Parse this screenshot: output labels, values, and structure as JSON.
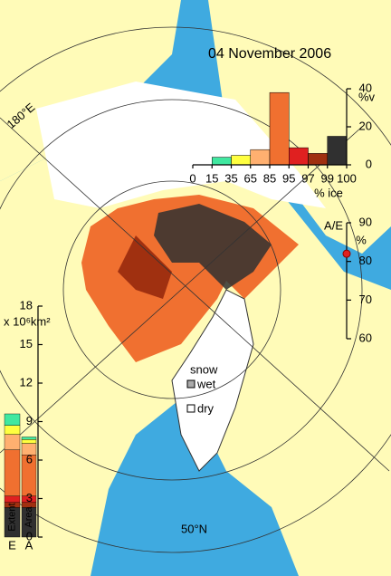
{
  "title": "04 November 2006",
  "map_labels": {
    "longitude": "180°E",
    "latitude": "50°N",
    "snow": "snow",
    "wet": "wet",
    "dry": "dry"
  },
  "histogram": {
    "type": "bar",
    "bins": [
      0,
      15,
      35,
      65,
      85,
      95,
      97,
      99,
      100
    ],
    "values": [
      0,
      4,
      5,
      8,
      38,
      9,
      6,
      15
    ],
    "colors": [
      "#2040ff",
      "#40e8a0",
      "#ffff40",
      "#ffb070",
      "#f07030",
      "#e02020",
      "#a03010",
      "#303030"
    ],
    "ylim": [
      0,
      40
    ],
    "yticks": [
      0,
      20,
      40
    ],
    "ylabel": "%v",
    "xlabel": "% ice"
  },
  "ratio": {
    "type": "scatter",
    "label": "A/E",
    "unit": "%",
    "ylim": [
      60,
      90
    ],
    "yticks": [
      60,
      70,
      80,
      90
    ],
    "value": 82,
    "color": "#e02020"
  },
  "extent_area": {
    "type": "stacked-bar",
    "categories": [
      "E",
      "A"
    ],
    "bar_labels": [
      "Extent",
      "Area"
    ],
    "ylabel": "x 10⁶km²",
    "ylim": [
      0,
      18
    ],
    "yticks": [
      0,
      3,
      6,
      9,
      12,
      15,
      18
    ],
    "series": [
      {
        "color": "#303030",
        "values": [
          2.3,
          2.3
        ]
      },
      {
        "color": "#a03010",
        "values": [
          0.4,
          0.4
        ]
      },
      {
        "color": "#e02020",
        "values": [
          0.5,
          0.5
        ]
      },
      {
        "color": "#f07030",
        "values": [
          3.6,
          3.2
        ]
      },
      {
        "color": "#ffb070",
        "values": [
          1.2,
          0.9
        ]
      },
      {
        "color": "#ffff40",
        "values": [
          0.7,
          0.3
        ]
      },
      {
        "color": "#40e8a0",
        "values": [
          0.9,
          0.2
        ]
      }
    ]
  }
}
